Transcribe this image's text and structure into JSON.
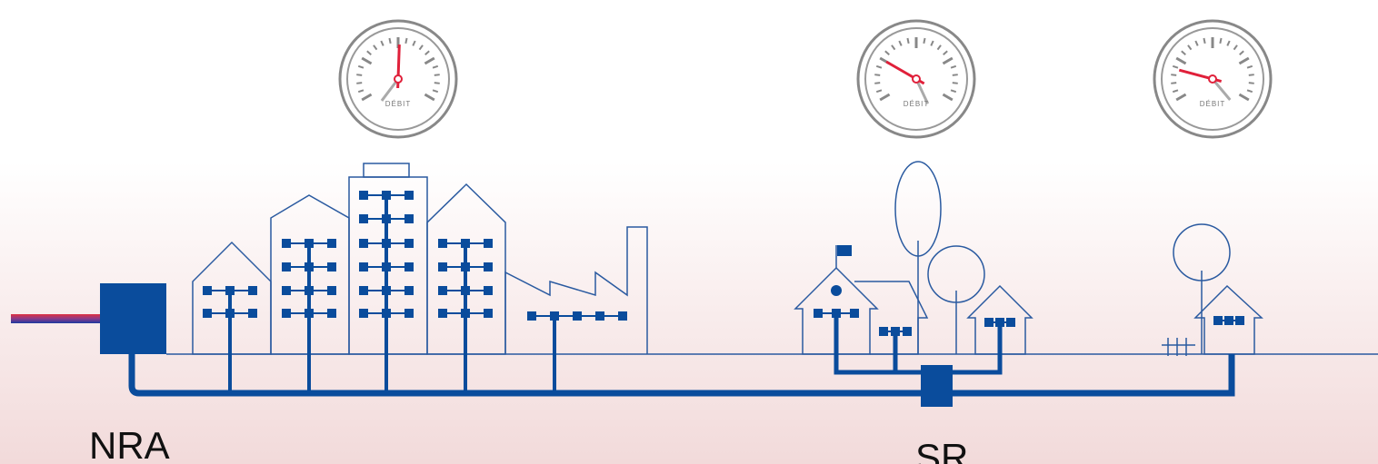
{
  "gauges": [
    {
      "label": "DÉBIT"
    },
    {
      "label": "DÉBIT"
    },
    {
      "label": "DÉBIT"
    }
  ],
  "labels": {
    "nra": "NRA",
    "sr": "SR"
  }
}
